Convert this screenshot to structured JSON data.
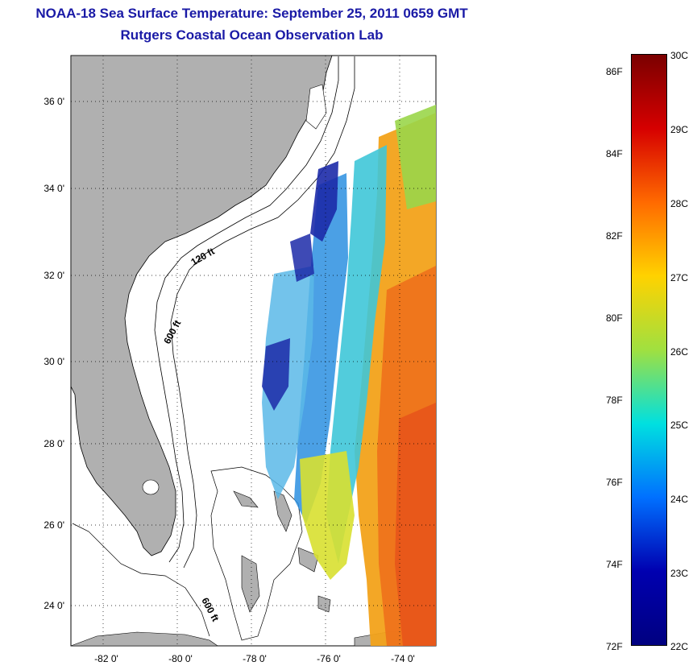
{
  "title_line1": "NOAA-18 Sea Surface Temperature:  September 25, 2011 0659 GMT",
  "title_line2": "Rutgers Coastal Ocean Observation Lab",
  "map": {
    "lon_ticks": [
      "-82 0'",
      "-80 0'",
      "-78 0'",
      "-76 0'",
      "-74 0'"
    ],
    "lat_ticks": [
      "36 0'",
      "34 0'",
      "32 0'",
      "30 0'",
      "28 0'",
      "26 0'",
      "24 0'"
    ],
    "contour_labels": [
      "120 ft",
      "600 ft",
      "600 ft"
    ],
    "land_color": "#b0b0b0"
  },
  "colorbar": {
    "celsius": [
      "30C",
      "29C",
      "28C",
      "27C",
      "26C",
      "25C",
      "24C",
      "23C",
      "22C"
    ],
    "fahrenheit": [
      "86F",
      "84F",
      "82F",
      "80F",
      "78F",
      "76F",
      "74F",
      "72F"
    ],
    "colors": [
      "#7a0000",
      "#d60000",
      "#ff6a00",
      "#ffd200",
      "#a0e040",
      "#00e0e0",
      "#0070ff",
      "#0000b0",
      "#000080"
    ]
  }
}
